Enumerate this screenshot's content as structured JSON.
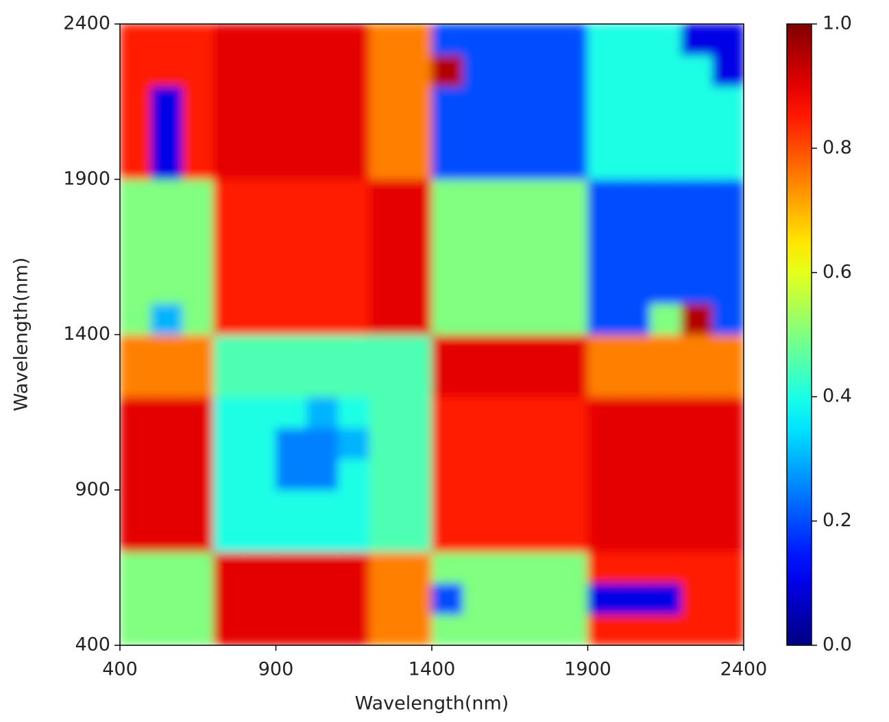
{
  "chart_data": {
    "type": "heatmap",
    "xlabel": "Wavelength(nm)",
    "ylabel": "Wavelength(nm)",
    "colormap": "jet",
    "xlim": [
      400,
      2400
    ],
    "ylim": [
      400,
      2400
    ],
    "xticks": [
      400,
      900,
      1400,
      1900,
      2400
    ],
    "yticks": [
      400,
      900,
      1400,
      1900,
      2400
    ],
    "xbins": [
      400,
      500,
      600,
      700,
      800,
      900,
      1000,
      1100,
      1200,
      1300,
      1400,
      1500,
      1600,
      1700,
      1800,
      1900,
      2000,
      2100,
      2200,
      2300,
      2400
    ],
    "ybins": [
      400,
      500,
      600,
      700,
      800,
      900,
      1000,
      1100,
      1200,
      1300,
      1400,
      1500,
      1600,
      1700,
      1800,
      1900,
      2000,
      2100,
      2200,
      2300,
      2400
    ],
    "clim": [
      0,
      1
    ],
    "cticks": [
      {
        "value": 0,
        "label": "0.0"
      },
      {
        "value": 0.2,
        "label": "0.2"
      },
      {
        "value": 0.4,
        "label": "0.4"
      },
      {
        "value": 0.6,
        "label": "0.6"
      },
      {
        "value": 0.8,
        "label": "0.8"
      },
      {
        "value": 1,
        "label": "1.0"
      }
    ],
    "z": [
      [
        0.5,
        0.5,
        0.5,
        0.9,
        0.9,
        0.9,
        0.9,
        0.9,
        0.75,
        0.75,
        0.5,
        0.5,
        0.5,
        0.5,
        0.5,
        0.85,
        0.85,
        0.85,
        0.85,
        0.85
      ],
      [
        0.5,
        0.5,
        0.5,
        0.9,
        0.9,
        0.9,
        0.9,
        0.9,
        0.75,
        0.75,
        0.2,
        0.5,
        0.5,
        0.5,
        0.5,
        0.1,
        0.1,
        0.1,
        0.85,
        0.85
      ],
      [
        0.5,
        0.5,
        0.5,
        0.9,
        0.9,
        0.9,
        0.9,
        0.9,
        0.75,
        0.75,
        0.5,
        0.5,
        0.5,
        0.5,
        0.5,
        0.85,
        0.85,
        0.85,
        0.85,
        0.85
      ],
      [
        0.9,
        0.9,
        0.9,
        0.4,
        0.4,
        0.4,
        0.4,
        0.4,
        0.45,
        0.45,
        0.85,
        0.85,
        0.85,
        0.85,
        0.85,
        0.9,
        0.9,
        0.9,
        0.9,
        0.9
      ],
      [
        0.9,
        0.9,
        0.9,
        0.4,
        0.4,
        0.4,
        0.4,
        0.4,
        0.45,
        0.45,
        0.85,
        0.85,
        0.85,
        0.85,
        0.85,
        0.9,
        0.9,
        0.9,
        0.9,
        0.9
      ],
      [
        0.9,
        0.9,
        0.9,
        0.4,
        0.4,
        0.25,
        0.25,
        0.4,
        0.45,
        0.45,
        0.85,
        0.85,
        0.85,
        0.85,
        0.85,
        0.9,
        0.9,
        0.9,
        0.9,
        0.9
      ],
      [
        0.9,
        0.9,
        0.9,
        0.4,
        0.4,
        0.25,
        0.25,
        0.3,
        0.45,
        0.45,
        0.85,
        0.85,
        0.85,
        0.85,
        0.85,
        0.9,
        0.9,
        0.9,
        0.9,
        0.9
      ],
      [
        0.9,
        0.9,
        0.9,
        0.4,
        0.4,
        0.4,
        0.3,
        0.4,
        0.45,
        0.45,
        0.85,
        0.85,
        0.85,
        0.85,
        0.85,
        0.9,
        0.9,
        0.9,
        0.9,
        0.9
      ],
      [
        0.75,
        0.75,
        0.75,
        0.45,
        0.45,
        0.45,
        0.45,
        0.45,
        0.45,
        0.45,
        0.9,
        0.9,
        0.9,
        0.9,
        0.9,
        0.75,
        0.75,
        0.75,
        0.75,
        0.75
      ],
      [
        0.75,
        0.75,
        0.75,
        0.45,
        0.45,
        0.45,
        0.45,
        0.45,
        0.45,
        0.45,
        0.9,
        0.9,
        0.9,
        0.9,
        0.9,
        0.75,
        0.75,
        0.75,
        0.75,
        0.75
      ],
      [
        0.5,
        0.3,
        0.5,
        0.85,
        0.85,
        0.85,
        0.85,
        0.85,
        0.9,
        0.9,
        0.5,
        0.5,
        0.5,
        0.5,
        0.5,
        0.2,
        0.2,
        0.5,
        0.95,
        0.2
      ],
      [
        0.5,
        0.5,
        0.5,
        0.85,
        0.85,
        0.85,
        0.85,
        0.85,
        0.9,
        0.9,
        0.5,
        0.5,
        0.5,
        0.5,
        0.5,
        0.2,
        0.2,
        0.2,
        0.2,
        0.2
      ],
      [
        0.5,
        0.5,
        0.5,
        0.85,
        0.85,
        0.85,
        0.85,
        0.85,
        0.9,
        0.9,
        0.5,
        0.5,
        0.5,
        0.5,
        0.5,
        0.2,
        0.2,
        0.2,
        0.2,
        0.2
      ],
      [
        0.5,
        0.5,
        0.5,
        0.85,
        0.85,
        0.85,
        0.85,
        0.85,
        0.9,
        0.9,
        0.5,
        0.5,
        0.5,
        0.5,
        0.5,
        0.2,
        0.2,
        0.2,
        0.2,
        0.2
      ],
      [
        0.5,
        0.5,
        0.5,
        0.85,
        0.85,
        0.85,
        0.85,
        0.85,
        0.9,
        0.9,
        0.5,
        0.5,
        0.5,
        0.5,
        0.5,
        0.2,
        0.2,
        0.2,
        0.2,
        0.2
      ],
      [
        0.85,
        0.1,
        0.85,
        0.9,
        0.9,
        0.9,
        0.9,
        0.9,
        0.75,
        0.75,
        0.2,
        0.2,
        0.2,
        0.2,
        0.2,
        0.4,
        0.4,
        0.4,
        0.4,
        0.4
      ],
      [
        0.85,
        0.1,
        0.85,
        0.9,
        0.9,
        0.9,
        0.9,
        0.9,
        0.75,
        0.75,
        0.2,
        0.2,
        0.2,
        0.2,
        0.2,
        0.4,
        0.4,
        0.4,
        0.4,
        0.4
      ],
      [
        0.85,
        0.1,
        0.85,
        0.9,
        0.9,
        0.9,
        0.9,
        0.9,
        0.75,
        0.75,
        0.2,
        0.2,
        0.2,
        0.2,
        0.2,
        0.4,
        0.4,
        0.4,
        0.4,
        0.4
      ],
      [
        0.85,
        0.85,
        0.85,
        0.9,
        0.9,
        0.9,
        0.9,
        0.9,
        0.75,
        0.75,
        0.95,
        0.2,
        0.2,
        0.2,
        0.2,
        0.4,
        0.4,
        0.4,
        0.4,
        0.1
      ],
      [
        0.85,
        0.85,
        0.85,
        0.9,
        0.9,
        0.9,
        0.9,
        0.9,
        0.75,
        0.75,
        0.2,
        0.2,
        0.2,
        0.2,
        0.2,
        0.4,
        0.4,
        0.4,
        0.1,
        0.1
      ]
    ]
  }
}
